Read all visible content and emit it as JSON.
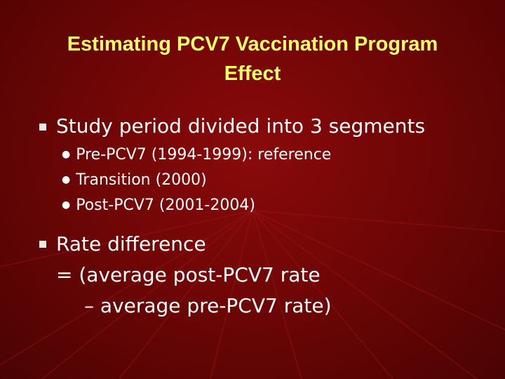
{
  "slide": {
    "title_line1": "Estimating PCV7 Vaccination Program",
    "title_line2": "Effect",
    "bullet1": "Study period divided into 3 segments",
    "sub_items": [
      "Pre-PCV7 (1994-1999): reference",
      "Transition (2000)",
      "Post-PCV7 (2001-2004)"
    ],
    "bullet2_line1": "Rate difference",
    "bullet2_line2": "= (average post-PCV7 rate",
    "bullet2_line3": "– average pre-PCV7 rate)"
  },
  "colors": {
    "background": "#700606",
    "title": "#ffff66",
    "text": "#ffffff"
  }
}
